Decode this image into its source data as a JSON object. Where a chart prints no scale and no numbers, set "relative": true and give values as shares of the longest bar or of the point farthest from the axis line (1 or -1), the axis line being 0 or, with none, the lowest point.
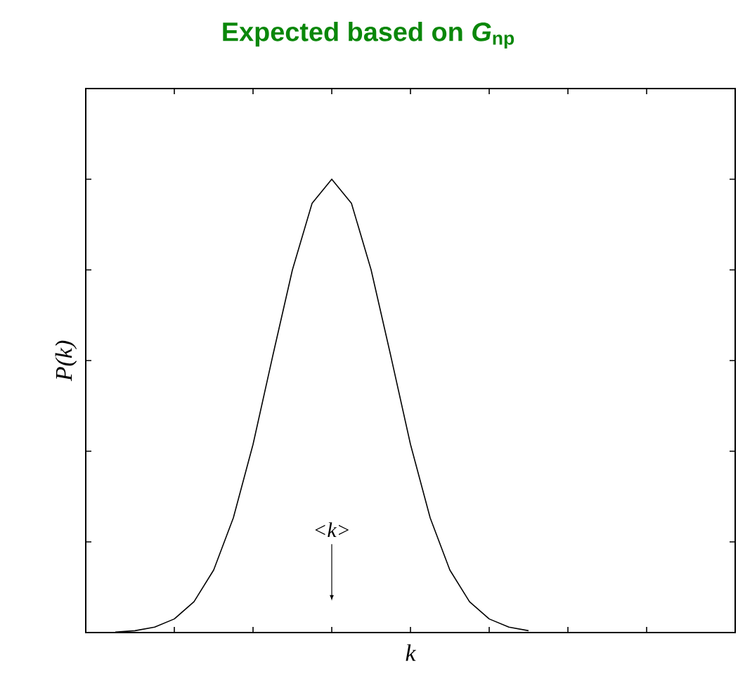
{
  "chart_data": {
    "type": "line",
    "relative": true,
    "title": "Expected based on *G*$_{np}$",
    "xlabel": "k",
    "ylabel": "P(k)",
    "annotations": [
      "<k>"
    ],
    "tick_labels": false,
    "grid": false,
    "marker": "none",
    "line_style": "solid",
    "categories": [
      null,
      null,
      null,
      null,
      null,
      null,
      null,
      null,
      null,
      null,
      null,
      null,
      null,
      null,
      null,
      null,
      null,
      null,
      null,
      null,
      null,
      null,
      null,
      null,
      null,
      null,
      null,
      null,
      null,
      null,
      null,
      null,
      null
    ],
    "series": [
      {
        "color": "#000000",
        "values": [
          null,
          0.001,
          0.004,
          0.012,
          0.03,
          0.068,
          0.138,
          0.253,
          0.415,
          0.61,
          0.8,
          0.947,
          1,
          0.947,
          0.8,
          0.61,
          0.415,
          0.253,
          0.138,
          0.068,
          0.03,
          0.012,
          0.004,
          null,
          null,
          null,
          null,
          null,
          null,
          null,
          null,
          null,
          null
        ]
      }
    ]
  }
}
